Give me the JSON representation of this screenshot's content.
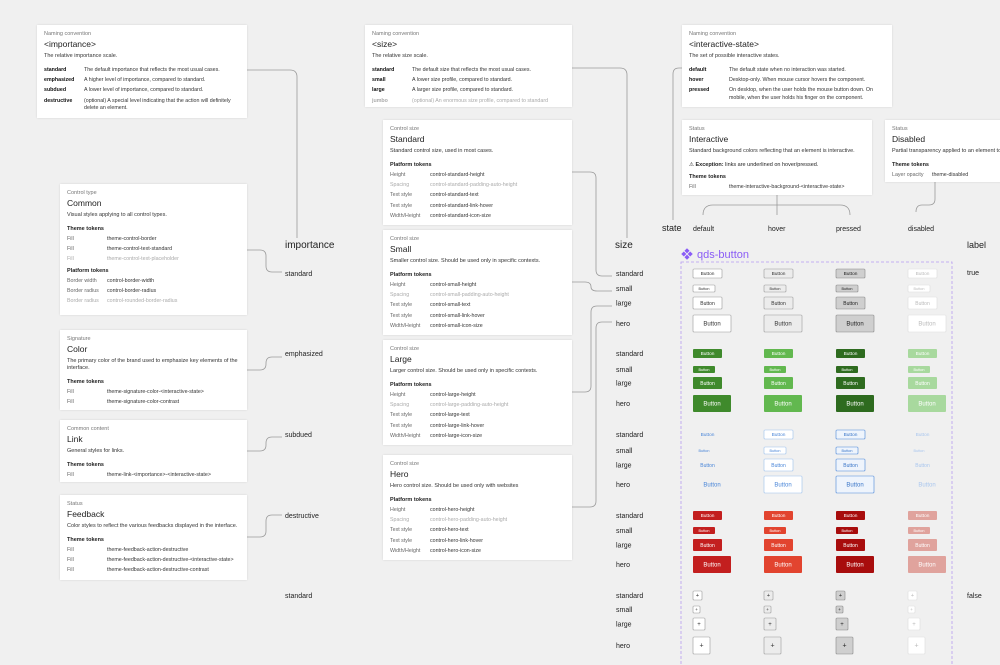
{
  "naming": [
    {
      "kicker": "Naming convention",
      "title": "<importance>",
      "desc": "The relative importance scale.",
      "rows": [
        {
          "term": "standard",
          "text": "The default importance that reflects the most usual cases."
        },
        {
          "term": "emphasized",
          "text": "A higher level of importance, compared to standard."
        },
        {
          "term": "subdued",
          "text": "A lower level of importance, compared to standard."
        },
        {
          "term": "destructive",
          "text": "(optional) A special level indicating that the action will definitely delete an element."
        }
      ]
    },
    {
      "kicker": "Naming convention",
      "title": "<size>",
      "desc": "The relative size scale.",
      "rows": [
        {
          "term": "standard",
          "text": "The default size that reflects the most usual cases."
        },
        {
          "term": "small",
          "text": "A lower size profile, compared to standard."
        },
        {
          "term": "large",
          "text": "A larger size profile, compared to standard."
        },
        {
          "term": "jumbo",
          "text": "(optional) An enormous size profile, compared to standard",
          "muted": true
        }
      ]
    },
    {
      "kicker": "Naming convention",
      "title": "<interactive-state>",
      "desc": "The set of possible interactive states.",
      "rows": [
        {
          "term": "default",
          "text": "The default state when no interaction was started."
        },
        {
          "term": "hover",
          "text": "Desktop-only. When mouse cursor hovers the component."
        },
        {
          "term": "pressed",
          "text": "On desktop, when the user holds the mouse button down. On mobile, when the user holds his finger on the component."
        }
      ]
    }
  ],
  "control_types": [
    {
      "kicker": "Control type",
      "title": "Common",
      "desc": "Visual styles applying to all control types.",
      "sections": [
        {
          "heading": "Theme tokens",
          "rows": [
            {
              "key": "Fill",
              "token": "theme-control-border"
            },
            {
              "key": "Fill",
              "token": "theme-control-text-standard"
            },
            {
              "key": "Fill",
              "token": "theme-control-text-placeholder",
              "muted": true
            }
          ]
        },
        {
          "heading": "Platform tokens",
          "rows": [
            {
              "key": "Border width",
              "token": "control-border-width"
            },
            {
              "key": "Border radius",
              "token": "control-border-radius"
            },
            {
              "key": "Border radius",
              "token": "control-rounded-border-radius",
              "muted": true
            }
          ]
        }
      ]
    },
    {
      "kicker": "Signature",
      "title": "Color",
      "desc": "The primary color of the brand used to emphasize key elements of the interface.",
      "sections": [
        {
          "heading": "Theme tokens",
          "rows": [
            {
              "key": "Fill",
              "token": "theme-signature-color-<interactive-state>"
            },
            {
              "key": "Fill",
              "token": "theme-signature-color-contrast"
            }
          ]
        }
      ]
    },
    {
      "kicker": "Common content",
      "title": "Link",
      "desc": "General styles for links.",
      "sections": [
        {
          "heading": "Theme tokens",
          "rows": [
            {
              "key": "Fill",
              "token": "theme-link-<importance>-<interactive-state>"
            }
          ]
        }
      ]
    },
    {
      "kicker": "Status",
      "title": "Feedback",
      "desc": "Color styles to reflect the various feedbacks displayed in the interface.",
      "sections": [
        {
          "heading": "Theme tokens",
          "rows": [
            {
              "key": "Fill",
              "token": "theme-feedback-action-destructive"
            },
            {
              "key": "Fill",
              "token": "theme-feedback-action-destructive-<interactive-state>"
            },
            {
              "key": "Fill",
              "token": "theme-feedback-action-destructive-contrast"
            }
          ]
        }
      ]
    }
  ],
  "control_sizes": [
    {
      "kicker": "Control size",
      "title": "Standard",
      "desc": "Standard control size, used in most cases.",
      "sections": [
        {
          "heading": "Platform tokens",
          "rows": [
            {
              "key": "Height",
              "token": "control-standard-height"
            },
            {
              "key": "Spacing",
              "token": "control-standard-padding-auto-height",
              "muted": true
            },
            {
              "key": "Text style",
              "token": "control-standard-text"
            },
            {
              "key": "Text style",
              "token": "control-standard-link-hover"
            },
            {
              "key": "Width/Height",
              "token": "control-standard-icon-size"
            }
          ]
        }
      ]
    },
    {
      "kicker": "Control size",
      "title": "Small",
      "desc": "Smaller control size. Should be used only in specific contexts.",
      "sections": [
        {
          "heading": "Platform tokens",
          "rows": [
            {
              "key": "Height",
              "token": "control-small-height"
            },
            {
              "key": "Spacing",
              "token": "control-small-padding-auto-height",
              "muted": true
            },
            {
              "key": "Text style",
              "token": "control-small-text"
            },
            {
              "key": "Text style",
              "token": "control-small-link-hover"
            },
            {
              "key": "Width/Height",
              "token": "control-small-icon-size"
            }
          ]
        }
      ]
    },
    {
      "kicker": "Control size",
      "title": "Large",
      "desc": "Larger control size. Should be used only in specific contexts.",
      "sections": [
        {
          "heading": "Platform tokens",
          "rows": [
            {
              "key": "Height",
              "token": "control-large-height"
            },
            {
              "key": "Spacing",
              "token": "control-large-padding-auto-height",
              "muted": true
            },
            {
              "key": "Text style",
              "token": "control-large-text"
            },
            {
              "key": "Text style",
              "token": "control-large-link-hover"
            },
            {
              "key": "Width/Height",
              "token": "control-large-icon-size"
            }
          ]
        }
      ]
    },
    {
      "kicker": "Control size",
      "title": "Hero",
      "desc": "Hero control size. Should be used only with websites",
      "sections": [
        {
          "heading": "Platform tokens",
          "rows": [
            {
              "key": "Height",
              "token": "control-hero-height"
            },
            {
              "key": "Spacing",
              "token": "control-hero-padding-auto-height",
              "muted": true
            },
            {
              "key": "Text style",
              "token": "control-hero-text"
            },
            {
              "key": "Text style",
              "token": "control-hero-link-hover"
            },
            {
              "key": "Width/Height",
              "token": "control-hero-icon-size"
            }
          ]
        }
      ]
    }
  ],
  "status": [
    {
      "kicker": "Status",
      "title": "Interactive",
      "desc": "Standard background colors reflecting that an element is interactive.",
      "note": {
        "icon": "⚠",
        "label": "Exception:",
        "text": "links are underlined on hover/pressed."
      },
      "sections": [
        {
          "heading": "Theme tokens",
          "rows": [
            {
              "key": "Fill",
              "token": "theme-interactive-background-<interactive-state>"
            }
          ]
        }
      ]
    },
    {
      "kicker": "Status",
      "title": "Disabled",
      "desc": "Partial transparency applied to an element to ref",
      "sections": [
        {
          "heading": "Theme tokens",
          "rows": [
            {
              "key": "Layer opacity",
              "token": "theme-disabled"
            }
          ]
        }
      ]
    }
  ],
  "importance_axis": {
    "title": "importance",
    "labels": [
      "standard",
      "emphasized",
      "subdued",
      "destructive",
      "standard"
    ]
  },
  "size_axis": {
    "title": "size",
    "labels": [
      "standard",
      "small",
      "large",
      "hero"
    ]
  },
  "state_axis": {
    "title": "state",
    "labels": [
      "default",
      "hover",
      "pressed",
      "disabled"
    ]
  },
  "label_axis": {
    "title": "label",
    "labels": [
      "true",
      "false"
    ]
  },
  "component": {
    "title": "qds-button",
    "button_text": "Button",
    "icon_text": "+"
  }
}
